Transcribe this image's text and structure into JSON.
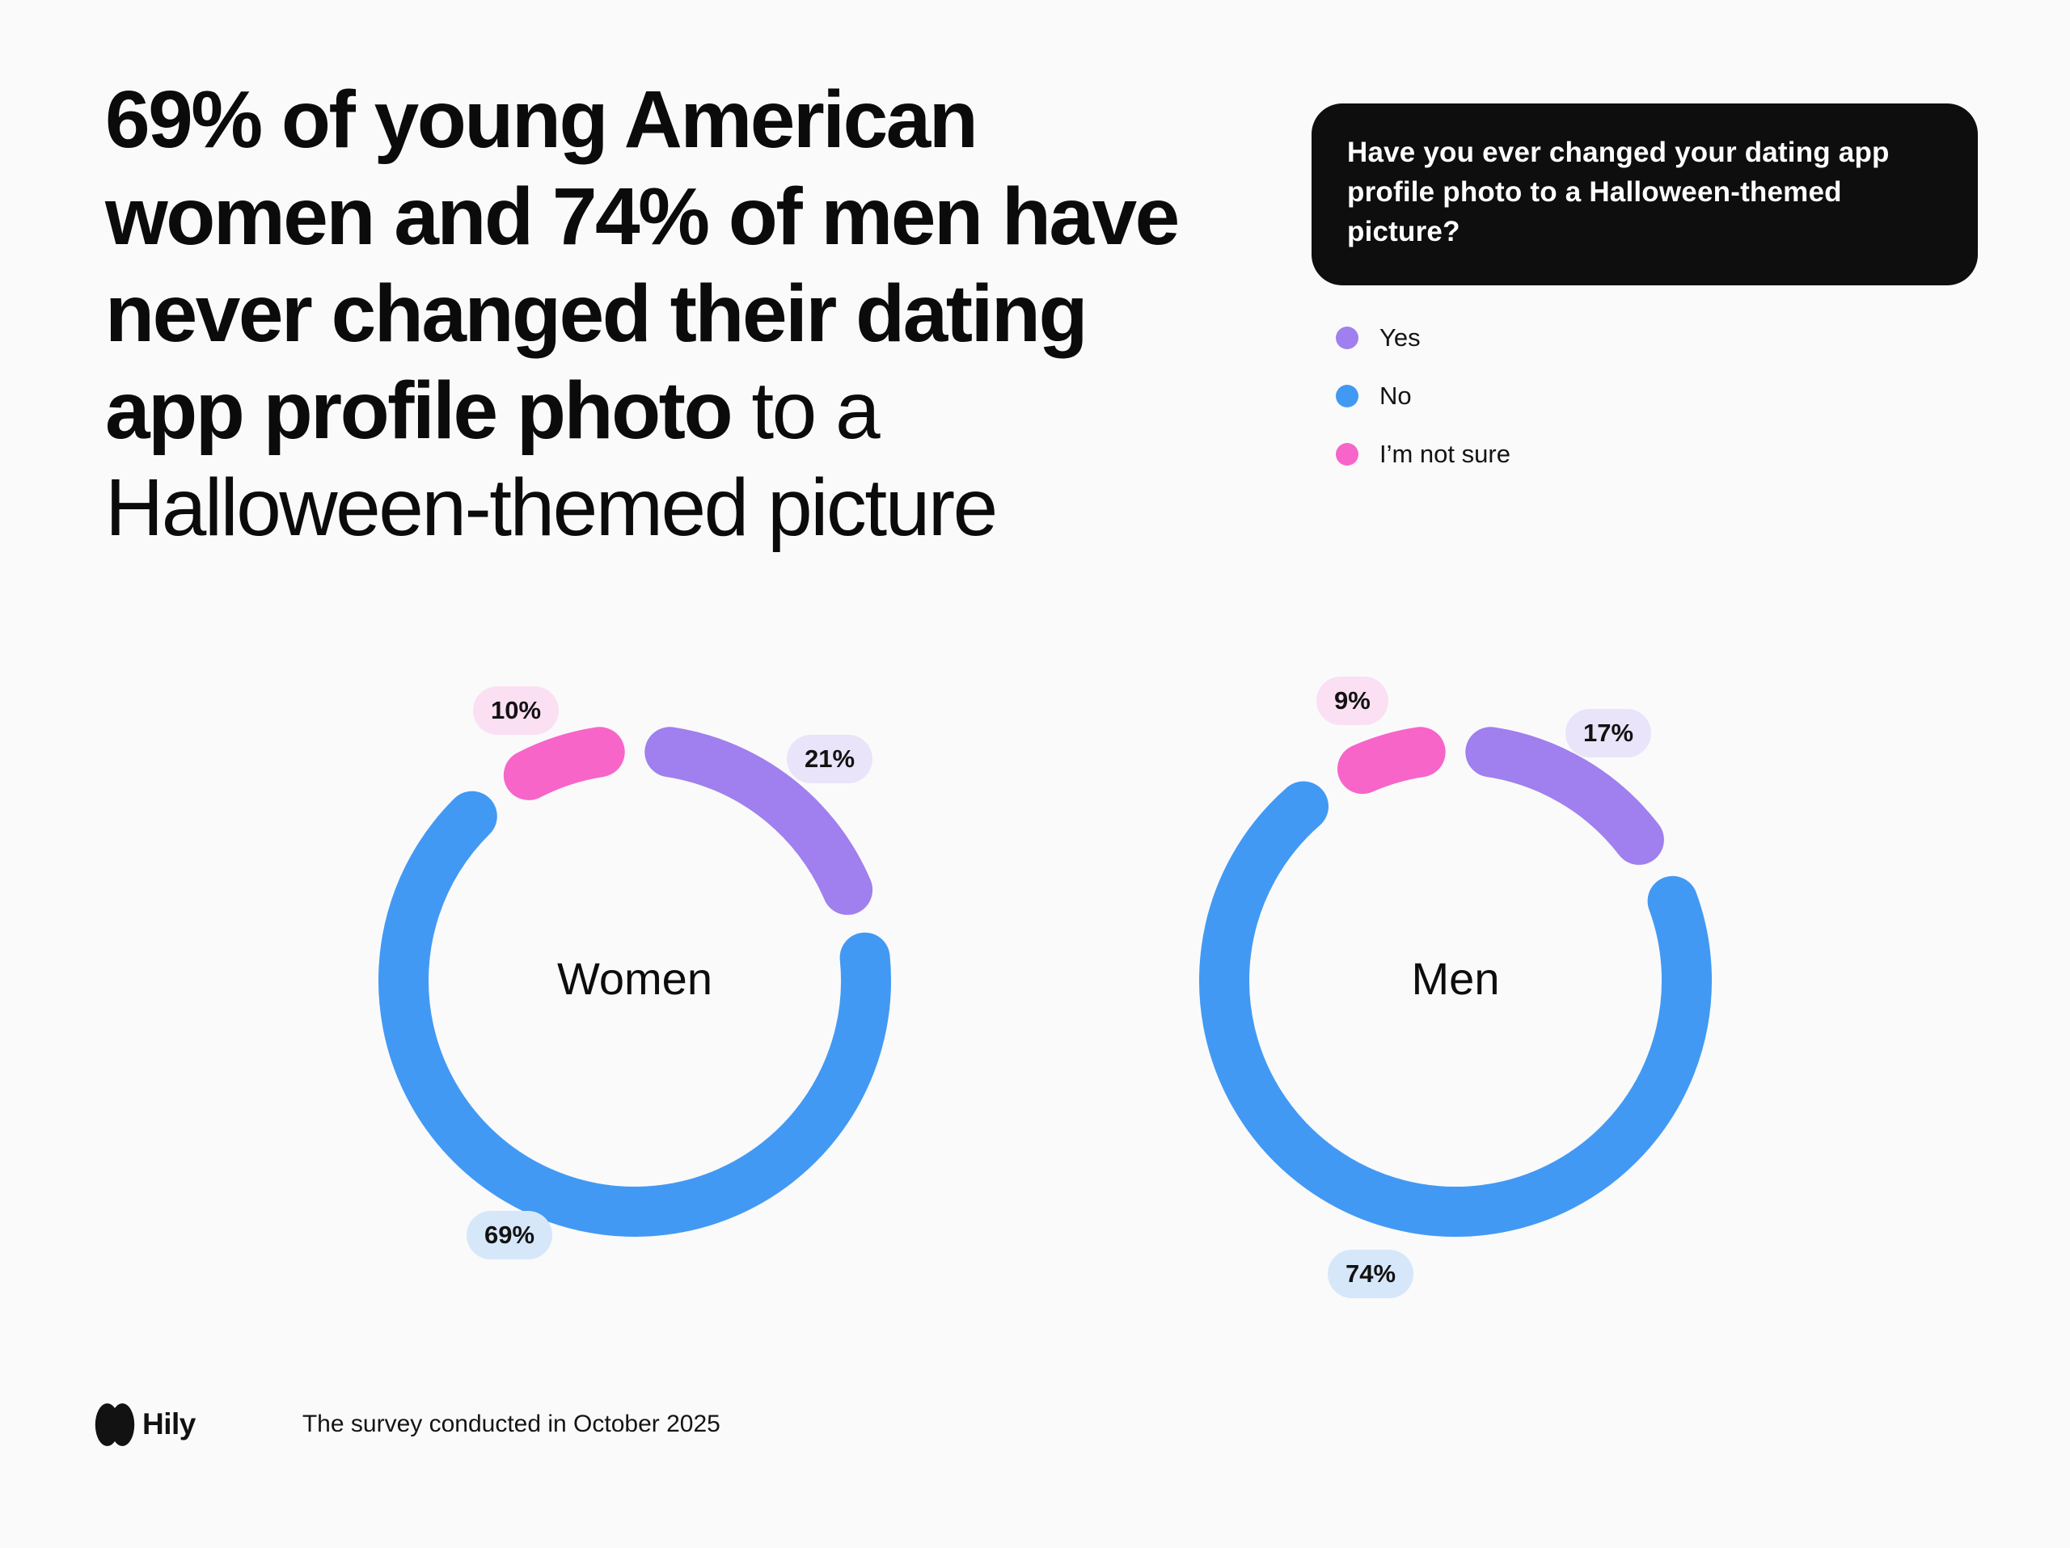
{
  "page": {
    "background": "#fafafb",
    "text_color": "#0b0b0b"
  },
  "headline": {
    "lines": [
      {
        "bold": "69% of young American",
        "regular": ""
      },
      {
        "bold": "women and 74% of men have",
        "regular": ""
      },
      {
        "bold": "never changed their dating",
        "regular": ""
      },
      {
        "bold": "app profile photo",
        "regular": " to a"
      },
      {
        "bold": "",
        "regular": "Halloween-themed picture"
      }
    ]
  },
  "question_box": {
    "text": "Have you ever changed your dating app profile photo to a Halloween-themed picture?",
    "background": "#0e0e0e",
    "text_color": "#ffffff"
  },
  "legend": {
    "position": "top-right",
    "items": [
      {
        "label": "Yes",
        "color": "#a07fee"
      },
      {
        "label": "No",
        "color": "#4299f4"
      },
      {
        "label": "I’m not sure",
        "color": "#f765c9"
      }
    ]
  },
  "chart_data": [
    {
      "type": "donut",
      "title": "Women",
      "categories": [
        "Yes",
        "No",
        "I’m not sure"
      ],
      "values": [
        21,
        69,
        10
      ],
      "labels": [
        "21%",
        "69%",
        "10%"
      ],
      "colors": [
        "#a07fee",
        "#4299f4",
        "#f765c9"
      ],
      "badge_colors": [
        "#e9e4f9",
        "#d7e7fa",
        "#fbdff2"
      ]
    },
    {
      "type": "donut",
      "title": "Men",
      "categories": [
        "Yes",
        "No",
        "I’m not sure"
      ],
      "values": [
        17,
        74,
        9
      ],
      "labels": [
        "17%",
        "74%",
        "9%"
      ],
      "colors": [
        "#a07fee",
        "#4299f4",
        "#f765c9"
      ],
      "badge_colors": [
        "#e9e4f9",
        "#d7e7fa",
        "#fbdff2"
      ]
    }
  ],
  "footer": {
    "brand": "Hily",
    "note": "The survey conducted in October 2025"
  }
}
